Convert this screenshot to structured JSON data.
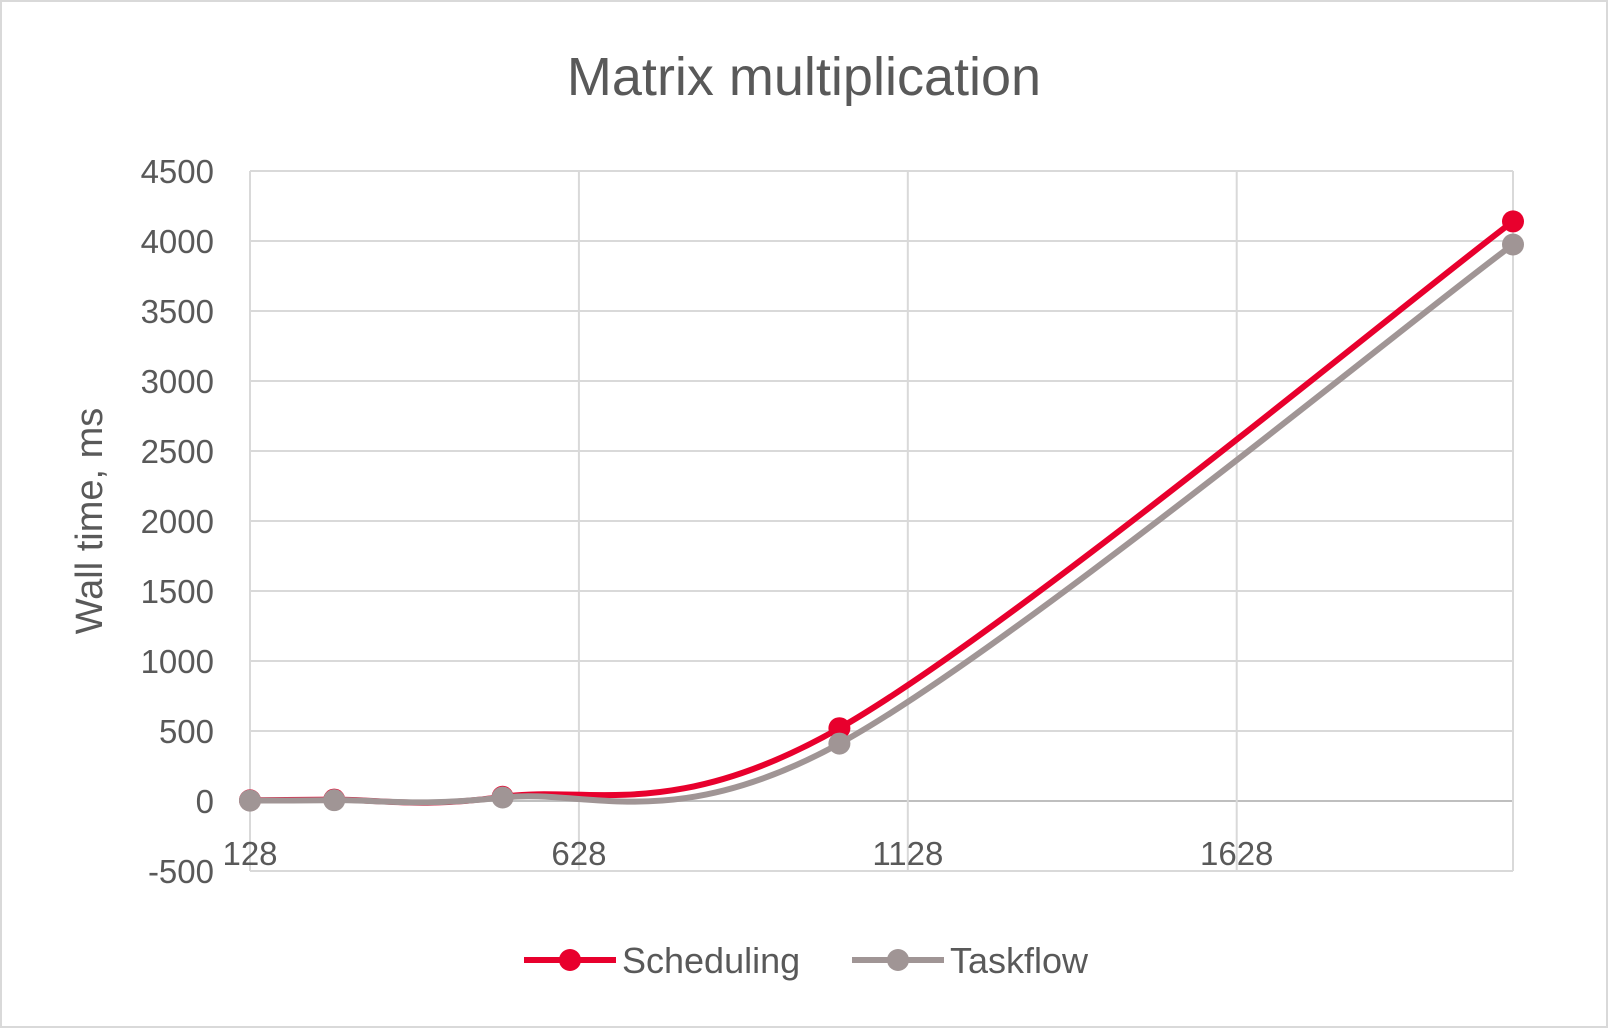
{
  "chart_data": {
    "type": "line",
    "title": "Matrix multiplication",
    "xlabel": "",
    "ylabel": "Wall time, ms",
    "xlim": [
      128,
      2048
    ],
    "ylim": [
      -500,
      4500
    ],
    "x_ticks": [
      128,
      628,
      1128,
      1628
    ],
    "y_ticks": [
      -500,
      0,
      500,
      1000,
      1500,
      2000,
      2500,
      3000,
      3500,
      4000,
      4500
    ],
    "grid": true,
    "legend_position": "bottom",
    "x": [
      128,
      256,
      512,
      1024,
      2048
    ],
    "series": [
      {
        "name": "Scheduling",
        "color": "#e8002d",
        "values": [
          5,
          10,
          30,
          520,
          4140
        ]
      },
      {
        "name": "Taskflow",
        "color": "#a09595",
        "values": [
          3,
          6,
          25,
          410,
          3975
        ]
      }
    ]
  }
}
